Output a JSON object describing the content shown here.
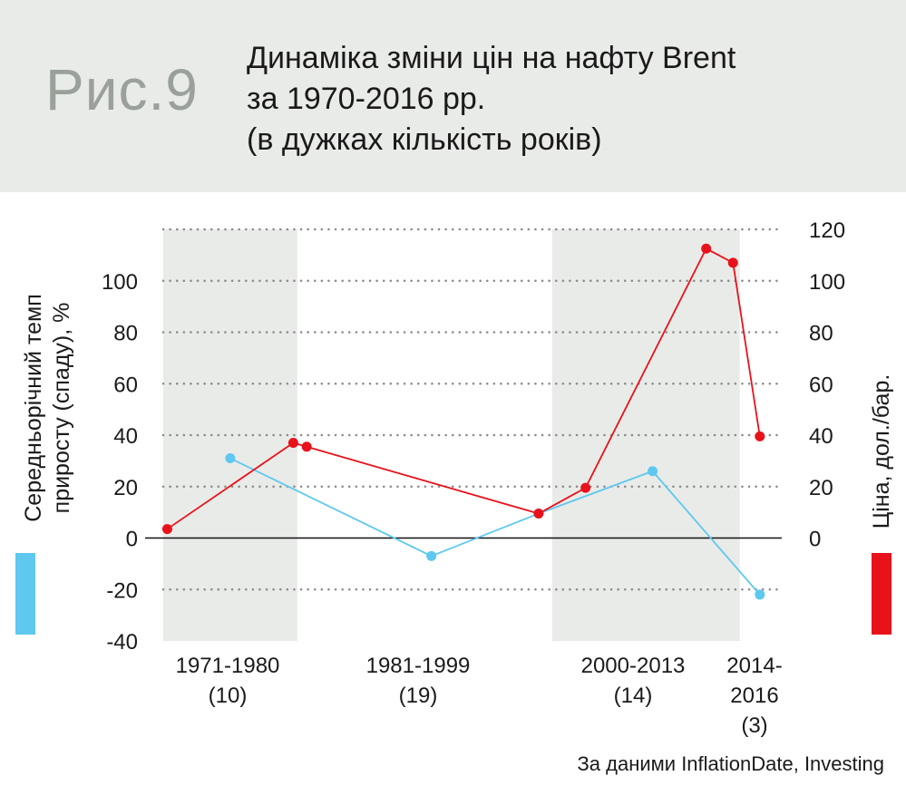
{
  "header": {
    "fig_label": "Рис.9",
    "title_lines": [
      "Динаміка зміни цін на нафту Brent",
      "за 1970-2016 рр.",
      "(в дужках кількість років)"
    ]
  },
  "source": "За даними InflationDate, Investing",
  "colors": {
    "growth": "#5ec8ef",
    "price": "#e8121b",
    "band": "#e9ebe8",
    "grid": "#8a8a8a"
  },
  "chart_data": {
    "type": "line",
    "y_left": {
      "label": "Середньорічний темп приросту (спаду), %",
      "min": -40,
      "max": 120,
      "ticks": [
        -40,
        -20,
        0,
        20,
        40,
        60,
        80,
        100
      ]
    },
    "y_right": {
      "label": "Ціна, дол./бар.",
      "min": -40,
      "max": 120,
      "ticks": [
        0,
        20,
        40,
        60,
        80,
        100,
        120
      ]
    },
    "x_range": [
      1970,
      2016
    ],
    "periods": [
      {
        "label_lines": [
          "1971-1980",
          "(10)"
        ],
        "start": 1970,
        "end": 1980,
        "shaded": true
      },
      {
        "label_lines": [
          "1981-1999",
          "(19)"
        ],
        "start": 1980,
        "end": 1999,
        "shaded": false
      },
      {
        "label_lines": [
          "2000-2013",
          "(14)"
        ],
        "start": 1999,
        "end": 2013,
        "shaded": true
      },
      {
        "label_lines": [
          "2014-",
          "2016",
          "(3)"
        ],
        "start": 2013,
        "end": 2016,
        "shaded": false
      }
    ],
    "series": [
      {
        "axis": "left",
        "points": [
          [
            1975,
            31
          ],
          [
            1990,
            -7
          ],
          [
            1998,
            9.5
          ],
          [
            2006.5,
            26
          ],
          [
            2014.5,
            -22
          ]
        ]
      },
      {
        "axis": "right",
        "points": [
          [
            1970.3,
            3.5
          ],
          [
            1979.7,
            37
          ],
          [
            1980.7,
            35.5
          ],
          [
            1998,
            9.5
          ],
          [
            2001.5,
            19.5
          ],
          [
            2010.5,
            112.5
          ],
          [
            2012.5,
            107
          ],
          [
            2014.5,
            39.5
          ]
        ]
      }
    ]
  }
}
